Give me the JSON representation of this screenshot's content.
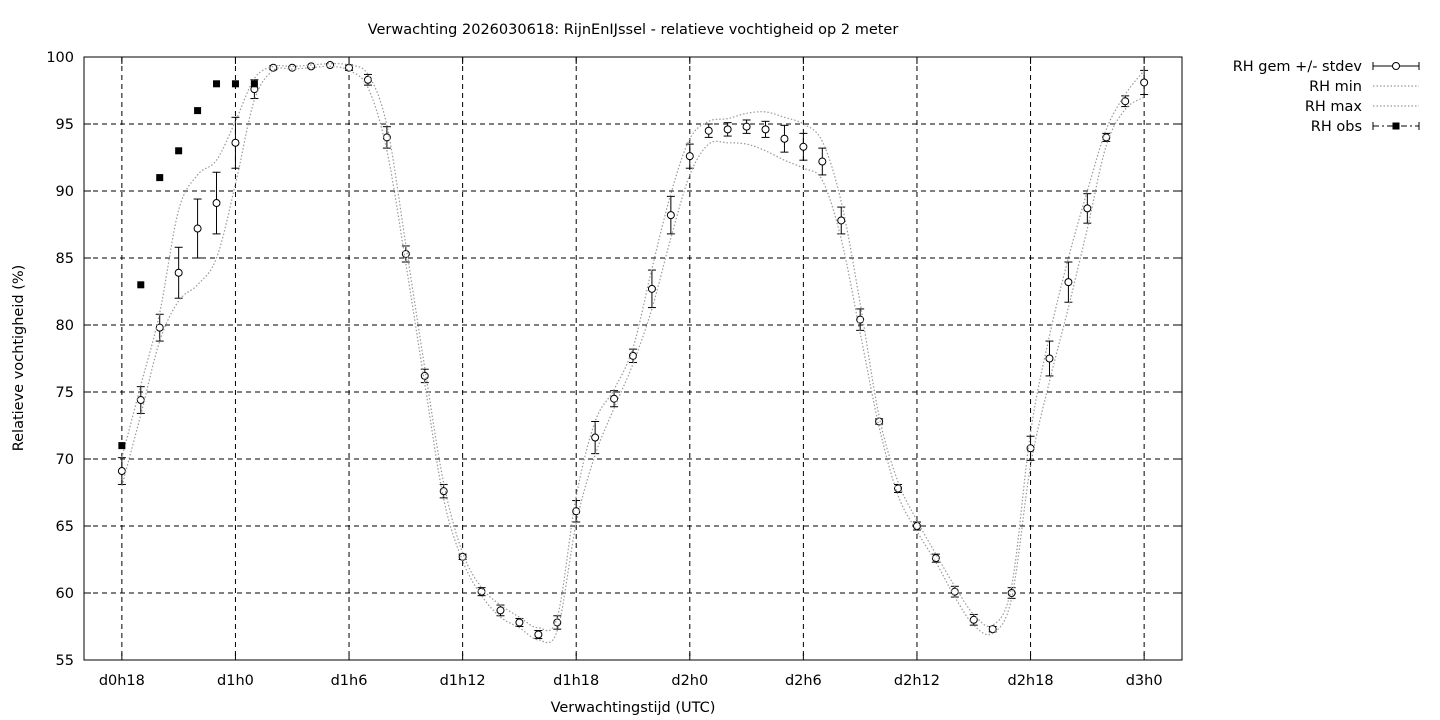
{
  "chart_data": {
    "type": "line",
    "title": "Verwachting 2026030618: RijnEnIJssel - relatieve vochtigheid op 2 meter",
    "xlabel": "Verwachtingstijd (UTC)",
    "ylabel": "Relatieve vochtigheid (%)",
    "ylim": [
      55,
      100
    ],
    "yticks": [
      55,
      60,
      65,
      70,
      75,
      80,
      85,
      90,
      95,
      100
    ],
    "xlim": [
      -2,
      56
    ],
    "xticks": [
      {
        "x": 0,
        "label": "d0h18"
      },
      {
        "x": 6,
        "label": "d1h0"
      },
      {
        "x": 12,
        "label": "d1h6"
      },
      {
        "x": 18,
        "label": "d1h12"
      },
      {
        "x": 24,
        "label": "d1h18"
      },
      {
        "x": 30,
        "label": "d2h0"
      },
      {
        "x": 36,
        "label": "d2h6"
      },
      {
        "x": 42,
        "label": "d2h12"
      },
      {
        "x": 48,
        "label": "d2h18"
      },
      {
        "x": 54,
        "label": "d3h0"
      }
    ],
    "grid": true,
    "legend_position": "outside-top-right",
    "series": [
      {
        "name": "RH gem +/- stdev",
        "style": "errorbars-open-circle",
        "x": [
          0,
          1,
          2,
          3,
          4,
          5,
          6,
          7,
          8,
          9,
          10,
          11,
          12,
          13,
          14,
          15,
          16,
          17,
          18,
          19,
          20,
          21,
          22,
          23,
          24,
          25,
          26,
          27,
          28,
          29,
          30,
          31,
          32,
          33,
          34,
          35,
          36,
          37,
          38,
          39,
          40,
          41,
          42,
          43,
          44,
          45,
          46,
          47,
          48,
          49,
          50,
          51,
          52,
          53,
          54
        ],
        "y": [
          69.1,
          74.4,
          79.8,
          83.9,
          87.2,
          89.1,
          93.6,
          97.6,
          99.2,
          99.2,
          99.3,
          99.4,
          99.2,
          98.3,
          94.0,
          85.3,
          76.2,
          67.6,
          62.7,
          60.1,
          58.7,
          57.8,
          56.9,
          57.8,
          66.1,
          71.6,
          74.5,
          77.7,
          82.7,
          88.2,
          92.6,
          94.5,
          94.6,
          94.8,
          94.6,
          93.9,
          93.3,
          92.2,
          87.8,
          80.4,
          72.8,
          67.8,
          65.0,
          62.6,
          60.1,
          58.0,
          57.3,
          60.0,
          70.8,
          77.5,
          83.2,
          88.7,
          94.0,
          96.7,
          98.1
        ],
        "stdev": [
          1.0,
          1.0,
          1.0,
          1.9,
          2.2,
          2.3,
          1.9,
          0.7,
          0.15,
          0.1,
          0.1,
          0.1,
          0.2,
          0.4,
          0.8,
          0.6,
          0.5,
          0.5,
          0.2,
          0.3,
          0.4,
          0.3,
          0.3,
          0.5,
          0.8,
          1.2,
          0.6,
          0.5,
          1.4,
          1.4,
          0.9,
          0.5,
          0.5,
          0.5,
          0.6,
          1.0,
          1.0,
          1.0,
          1.0,
          0.8,
          0.2,
          0.3,
          0.3,
          0.3,
          0.4,
          0.4,
          0.2,
          0.4,
          0.9,
          1.3,
          1.5,
          1.1,
          0.3,
          0.4,
          0.9
        ]
      },
      {
        "name": "RH min",
        "style": "dotted",
        "x": [
          0,
          1,
          2,
          3,
          4,
          5,
          6,
          7,
          8,
          9,
          10,
          11,
          12,
          13,
          14,
          15,
          16,
          17,
          18,
          19,
          20,
          21,
          22,
          23,
          24,
          25,
          26,
          27,
          28,
          29,
          30,
          31,
          32,
          33,
          34,
          35,
          36,
          37,
          38,
          39,
          40,
          41,
          42,
          43,
          44,
          45,
          46,
          47,
          48,
          49,
          50,
          51,
          52,
          53,
          54
        ],
        "y": [
          68.0,
          73.3,
          78.8,
          81.8,
          83.0,
          85.0,
          90.5,
          96.8,
          99.0,
          99.1,
          99.2,
          99.3,
          99.0,
          97.7,
          93.0,
          84.6,
          75.6,
          67.0,
          62.4,
          59.8,
          58.2,
          57.4,
          56.5,
          57.2,
          65.2,
          70.3,
          73.8,
          77.1,
          81.2,
          86.5,
          91.2,
          93.5,
          93.6,
          93.5,
          93.0,
          92.3,
          91.7,
          90.8,
          86.4,
          79.4,
          72.4,
          67.3,
          64.6,
          62.3,
          59.7,
          57.6,
          57.0,
          59.6,
          69.5,
          75.8,
          81.3,
          87.2,
          93.4,
          96.1,
          97.0
        ]
      },
      {
        "name": "RH max",
        "style": "dotted",
        "x": [
          0,
          1,
          2,
          3,
          4,
          5,
          6,
          7,
          8,
          9,
          10,
          11,
          12,
          13,
          14,
          15,
          16,
          17,
          18,
          19,
          20,
          21,
          22,
          23,
          24,
          25,
          26,
          27,
          28,
          29,
          30,
          31,
          32,
          33,
          34,
          35,
          36,
          37,
          38,
          39,
          40,
          41,
          42,
          43,
          44,
          45,
          46,
          47,
          48,
          49,
          50,
          51,
          52,
          53,
          54
        ],
        "y": [
          70.1,
          75.5,
          80.9,
          88.6,
          91.2,
          92.3,
          95.2,
          98.4,
          99.3,
          99.3,
          99.4,
          99.5,
          99.4,
          98.7,
          94.9,
          86.0,
          76.8,
          68.2,
          63.0,
          60.4,
          59.1,
          58.2,
          57.4,
          58.2,
          67.2,
          72.8,
          75.2,
          78.3,
          84.2,
          89.8,
          93.9,
          95.2,
          95.4,
          95.8,
          95.9,
          95.5,
          95.0,
          93.7,
          89.2,
          81.6,
          73.2,
          68.3,
          65.4,
          62.9,
          60.5,
          58.4,
          57.6,
          60.5,
          72.0,
          79.2,
          85.0,
          90.0,
          94.6,
          97.2,
          99.0
        ]
      },
      {
        "name": "RH obs",
        "style": "filled-square",
        "x": [
          0,
          1,
          2,
          3,
          4,
          5,
          6,
          7
        ],
        "y": [
          71,
          83,
          91,
          93,
          96,
          98,
          98,
          98
        ]
      }
    ]
  }
}
